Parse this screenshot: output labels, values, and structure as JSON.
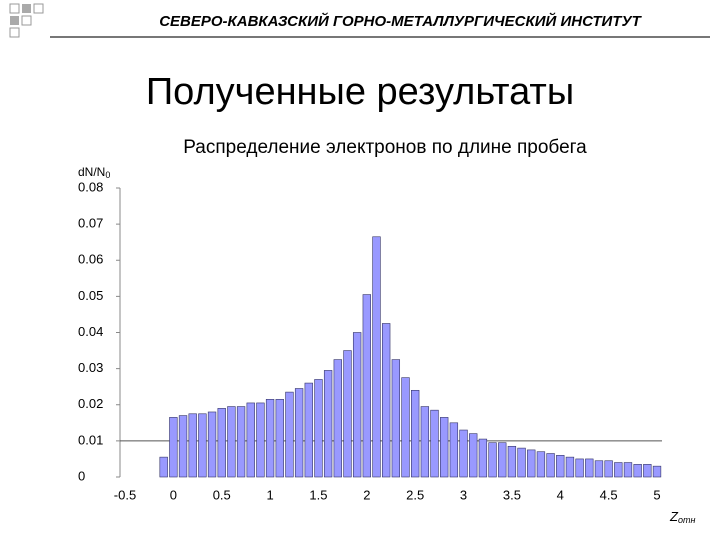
{
  "header": {
    "institute": "СЕВЕРО-КАВКАЗСКИЙ ГОРНО-МЕТАЛЛУРГИЧЕСКИЙ ИНСТИТУТ"
  },
  "slide_title": "Полученные результаты",
  "chart_data": {
    "type": "bar",
    "title": "Распределение электронов по длине пробега",
    "ylabel": "dN/N",
    "ylabel_sub": "0",
    "xlabel": "Z",
    "xlabel_sub": "отн",
    "x": [
      -0.1,
      0,
      0.1,
      0.2,
      0.3,
      0.4,
      0.5,
      0.6,
      0.7,
      0.8,
      0.9,
      1.0,
      1.1,
      1.2,
      1.3,
      1.4,
      1.5,
      1.6,
      1.7,
      1.8,
      1.9,
      2.0,
      2.1,
      2.2,
      2.3,
      2.4,
      2.5,
      2.6,
      2.7,
      2.8,
      2.9,
      3.0,
      3.1,
      3.2,
      3.3,
      3.4,
      3.5,
      3.6,
      3.7,
      3.8,
      3.9,
      4.0,
      4.1,
      4.2,
      4.3,
      4.4,
      4.5,
      4.6,
      4.7,
      4.8,
      4.9,
      5.0
    ],
    "values": [
      0.0055,
      0.0165,
      0.017,
      0.0175,
      0.0175,
      0.018,
      0.019,
      0.0195,
      0.0195,
      0.0205,
      0.0205,
      0.0215,
      0.0215,
      0.0235,
      0.0245,
      0.026,
      0.027,
      0.0295,
      0.0325,
      0.035,
      0.04,
      0.0505,
      0.0665,
      0.0425,
      0.0325,
      0.0275,
      0.024,
      0.0195,
      0.0185,
      0.0165,
      0.015,
      0.013,
      0.012,
      0.0105,
      0.0095,
      0.0095,
      0.0085,
      0.008,
      0.0075,
      0.007,
      0.0065,
      0.006,
      0.0055,
      0.005,
      0.005,
      0.0045,
      0.0045,
      0.004,
      0.004,
      0.0035,
      0.0035,
      0.003
    ],
    "bar_width": 0.08,
    "color": "#9999ff",
    "xlim": [
      -0.5,
      5
    ],
    "xticks": [
      -0.5,
      0,
      0.5,
      1,
      1.5,
      2,
      2.5,
      3,
      3.5,
      4,
      4.5,
      5
    ],
    "ylim": [
      0,
      0.08
    ],
    "yticks": [
      0,
      0.01,
      0.02,
      0.03,
      0.04,
      0.05,
      0.06,
      0.07,
      0.08
    ],
    "reference_line": 0.01
  }
}
